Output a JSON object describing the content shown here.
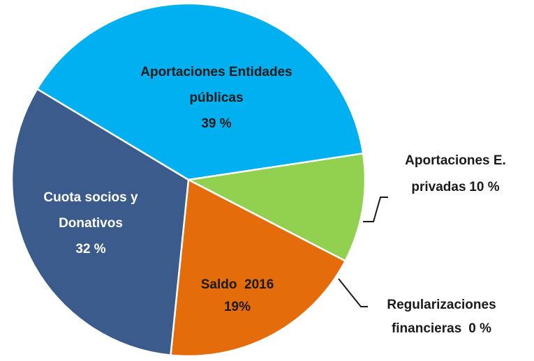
{
  "chart_data": {
    "type": "pie",
    "categories": [
      "Aportaciones Entidades públicas",
      "Aportaciones E. privadas",
      "Regularizaciones financieras",
      "Saldo  2016",
      "Cuota socios y Donativos"
    ],
    "values": [
      39,
      10,
      0,
      19,
      32
    ],
    "value_labels": [
      "39 %",
      "10 %",
      " 0 %",
      "19%",
      "32 %"
    ],
    "colors": [
      "#00b0f0",
      "#92d050",
      "#7f7f7f",
      "#e46c0a",
      "#3a5b8c"
    ]
  }
}
